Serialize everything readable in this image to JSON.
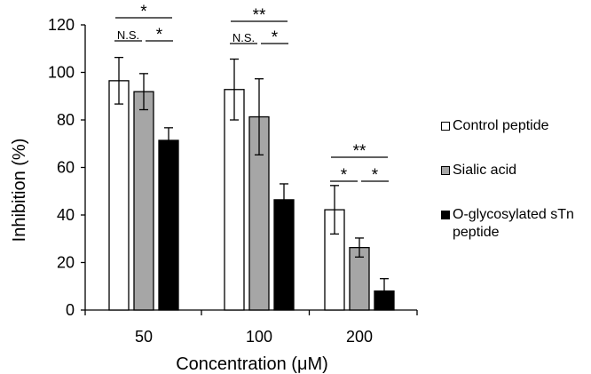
{
  "chart_data": {
    "type": "bar",
    "xlabel": "Concentration (μM)",
    "ylabel": "Inhibition (%)",
    "categories": [
      "50",
      "100",
      "200"
    ],
    "ylim": [
      0,
      120
    ],
    "yticks": [
      0,
      20,
      40,
      60,
      80,
      100,
      120
    ],
    "grid": false,
    "legend_position": "right",
    "series": [
      {
        "name": "Control peptide",
        "color": "#ffffff",
        "values": [
          96.5,
          92.8,
          42.2
        ],
        "errors": [
          9.8,
          12.8,
          10.2
        ]
      },
      {
        "name": "Sialic acid",
        "color": "#a6a6a6",
        "values": [
          91.9,
          81.3,
          26.3
        ],
        "errors": [
          7.6,
          16.0,
          4.0
        ]
      },
      {
        "name": "O-glycosylated sTn\npeptide",
        "color": "#000000",
        "values": [
          71.4,
          46.4,
          8.0
        ],
        "errors": [
          5.3,
          6.7,
          5.2
        ]
      }
    ],
    "annotations": [
      {
        "category": "50",
        "from": 0,
        "to": 2,
        "level": 0,
        "text": "*"
      },
      {
        "category": "50",
        "from": 0,
        "to": 1,
        "level": 1,
        "text": "N.S."
      },
      {
        "category": "50",
        "from": 1,
        "to": 2,
        "level": 1,
        "text": "*"
      },
      {
        "category": "100",
        "from": 0,
        "to": 2,
        "level": 0,
        "text": "**"
      },
      {
        "category": "100",
        "from": 0,
        "to": 1,
        "level": 1,
        "text": "N.S."
      },
      {
        "category": "100",
        "from": 1,
        "to": 2,
        "level": 1,
        "text": "*"
      },
      {
        "category": "200",
        "from": 0,
        "to": 2,
        "level": 0,
        "text": "**"
      },
      {
        "category": "200",
        "from": 0,
        "to": 1,
        "level": 1,
        "text": "*"
      },
      {
        "category": "200",
        "from": 1,
        "to": 2,
        "level": 1,
        "text": "*"
      }
    ]
  }
}
